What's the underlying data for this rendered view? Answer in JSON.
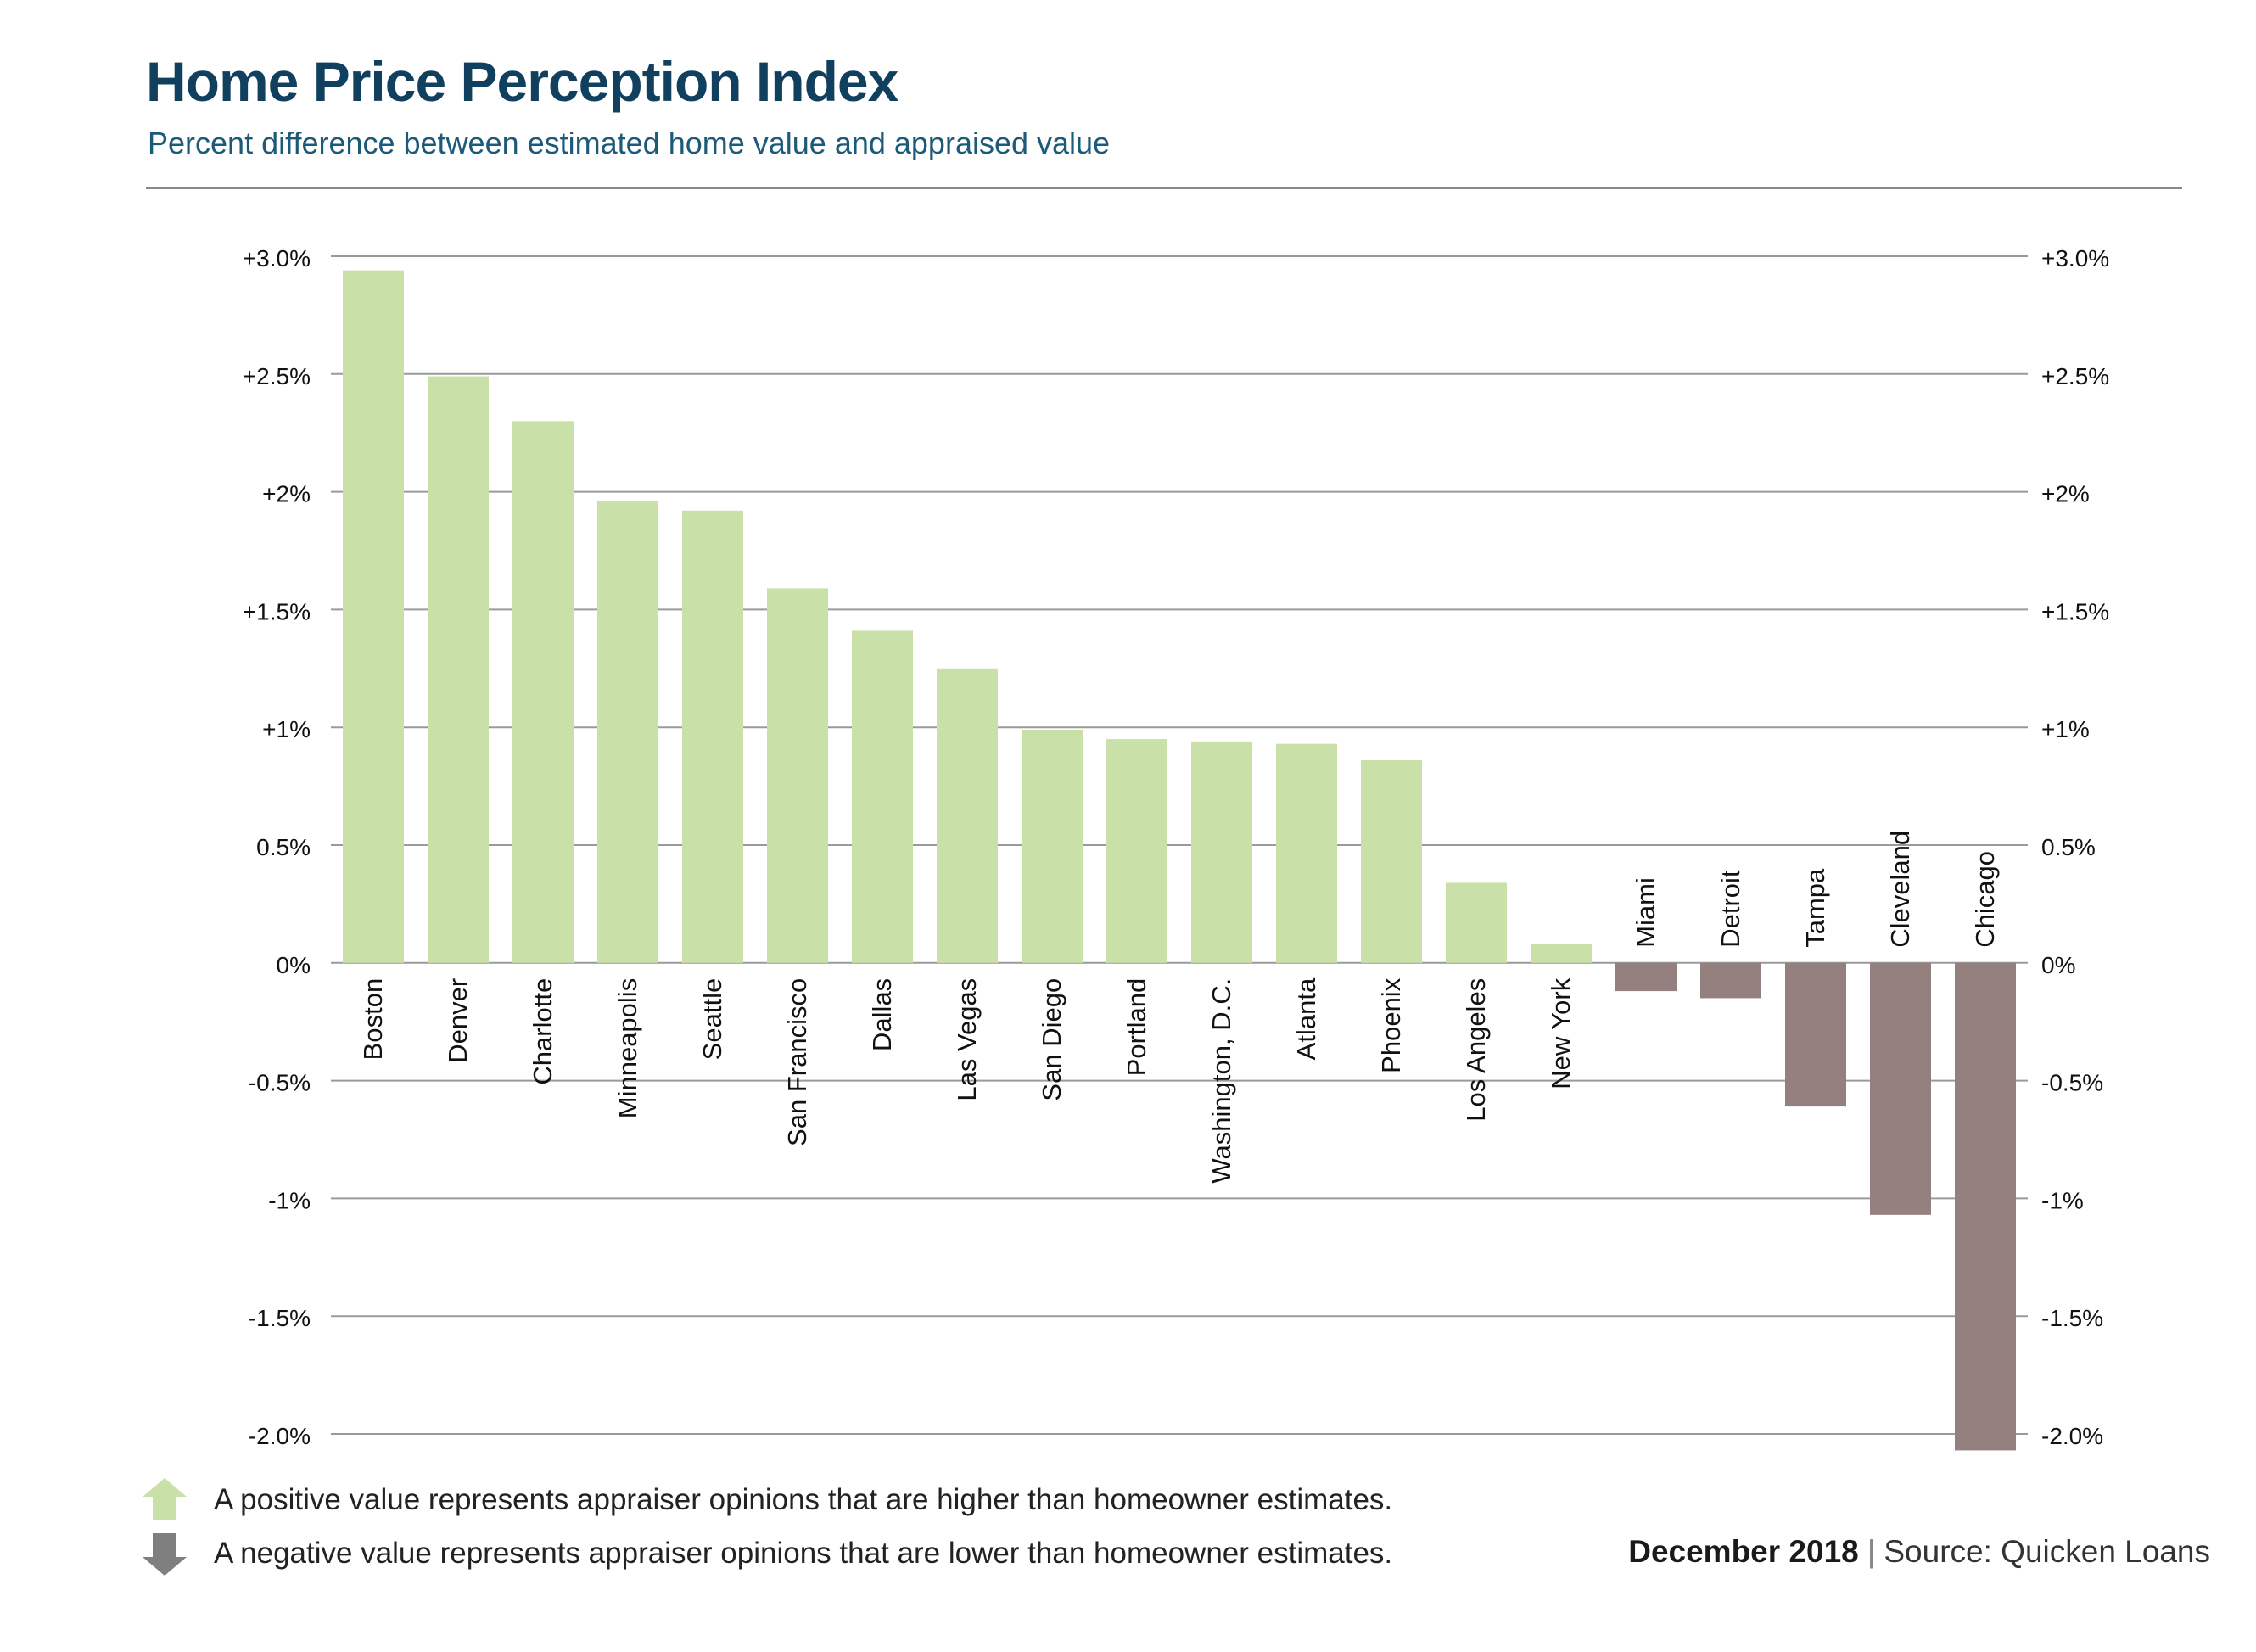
{
  "header": {
    "title": "Home Price Perception Index",
    "subtitle": "Percent difference between estimated home value and appraised value"
  },
  "colors": {
    "positive": "#c9e1a8",
    "negative": "#958080",
    "grid": "#9a9a9a",
    "title": "#11405f",
    "subtitle": "#1c5a7a"
  },
  "chart_data": {
    "type": "bar",
    "title": "",
    "xlabel": "",
    "ylabel": "",
    "ylim": [
      -2.0,
      3.0
    ],
    "grid": true,
    "y_ticks": [
      {
        "value": 3.0,
        "label": "+3.0%"
      },
      {
        "value": 2.5,
        "label": "+2.5%"
      },
      {
        "value": 2.0,
        "label": "+2%"
      },
      {
        "value": 1.5,
        "label": "+1.5%"
      },
      {
        "value": 1.0,
        "label": "+1%"
      },
      {
        "value": 0.5,
        "label": "0.5%"
      },
      {
        "value": 0.0,
        "label": "0%"
      },
      {
        "value": -0.5,
        "label": "-0.5%"
      },
      {
        "value": -1.0,
        "label": "-1%"
      },
      {
        "value": -1.5,
        "label": "-1.5%"
      },
      {
        "value": -2.0,
        "label": "-2.0%"
      }
    ],
    "categories": [
      "Boston",
      "Denver",
      "Charlotte",
      "Minneapolis",
      "Seattle",
      "San Francisco",
      "Dallas",
      "Las Vegas",
      "San Diego",
      "Portland",
      "Washington, D.C.",
      "Atlanta",
      "Phoenix",
      "Los Angeles",
      "New York",
      "Miami",
      "Detroit",
      "Tampa",
      "Cleveland",
      "Chicago"
    ],
    "values": [
      2.94,
      2.49,
      2.3,
      1.96,
      1.92,
      1.59,
      1.41,
      1.25,
      0.99,
      0.95,
      0.94,
      0.93,
      0.86,
      0.34,
      0.08,
      -0.12,
      -0.15,
      -0.61,
      -1.07,
      -2.07
    ]
  },
  "legend": {
    "positive_text": "A positive value represents appraiser opinions that are higher than homeowner estimates.",
    "negative_text": "A negative value represents appraiser opinions that are lower than homeowner estimates."
  },
  "footer": {
    "date": "December 2018",
    "separator": "|",
    "source": "Source: Quicken Loans"
  }
}
